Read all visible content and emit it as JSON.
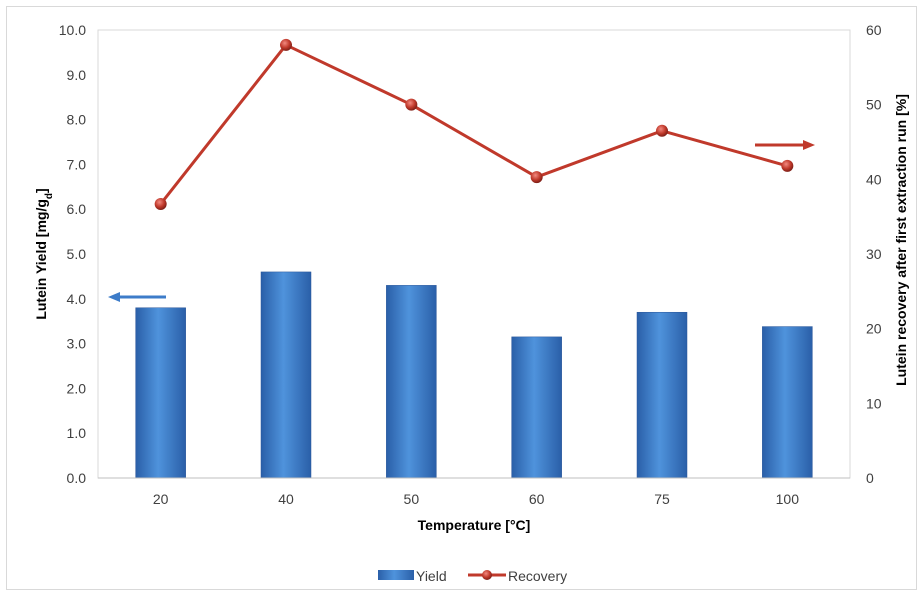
{
  "chart_data": {
    "type": "bar+line",
    "categories": [
      "20",
      "40",
      "50",
      "60",
      "75",
      "100"
    ],
    "series": [
      {
        "name": "Yield",
        "type": "bar",
        "axis": "left",
        "values": [
          3.8,
          4.6,
          4.3,
          3.15,
          3.7,
          3.38
        ],
        "color": "#3d7cc9"
      },
      {
        "name": "Recovery",
        "type": "line",
        "axis": "right",
        "values": [
          36.7,
          58.0,
          50.0,
          40.3,
          46.5,
          41.8
        ],
        "color": "#c0392b"
      }
    ],
    "xlabel": "Temperature [°C]",
    "ylabel_left": "Lutein Yield [mg/g",
    "ylabel_left_sub": "d",
    "ylabel_left_end": "]",
    "ylabel_right": "Lutein recovery after first extraction run [%]",
    "ylim_left": [
      0,
      10
    ],
    "ylim_right": [
      0,
      60
    ],
    "yticks_left": [
      "0.0",
      "1.0",
      "2.0",
      "3.0",
      "4.0",
      "5.0",
      "6.0",
      "7.0",
      "8.0",
      "9.0",
      "10.0"
    ],
    "yticks_right": [
      "0",
      "10",
      "20",
      "30",
      "40",
      "50",
      "60"
    ],
    "legend_position": "bottom",
    "grid": false,
    "annotations": [
      {
        "kind": "arrow",
        "direction": "left",
        "meaning": "Yield uses left axis",
        "color": "#3d7cc9"
      },
      {
        "kind": "arrow",
        "direction": "right",
        "meaning": "Recovery uses right axis",
        "color": "#c0392b"
      }
    ]
  }
}
